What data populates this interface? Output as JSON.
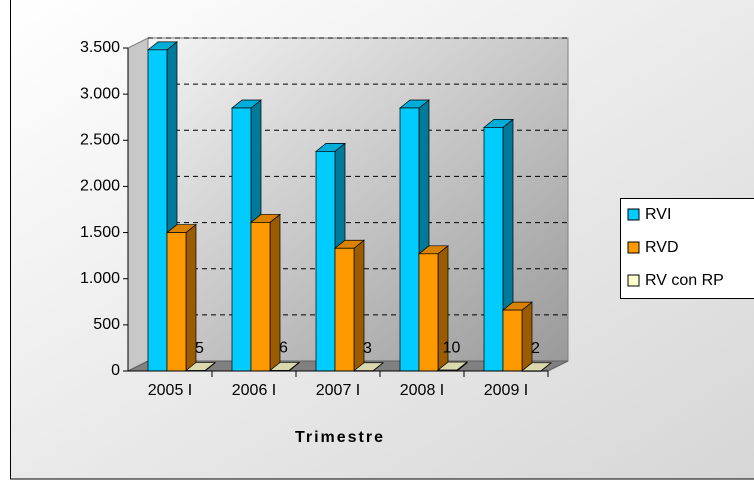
{
  "chart_data": {
    "type": "bar3d",
    "x_label": "Trimestre",
    "categories": [
      "2005 I",
      "2006 I",
      "2007 I",
      "2008 I",
      "2009 I"
    ],
    "series": [
      {
        "name": "RVI",
        "color": "#00ccff",
        "values": [
          3480,
          2850,
          2380,
          2850,
          2640
        ]
      },
      {
        "name": "RVD",
        "color": "#ff9900",
        "values": [
          1500,
          1610,
          1330,
          1270,
          660
        ]
      },
      {
        "name": "RV con RP",
        "color": "#ffffcc",
        "values": [
          5,
          6,
          3,
          10,
          2
        ],
        "show_labels": true
      }
    ],
    "ylim": [
      0,
      3500
    ],
    "yticks": [
      0,
      500,
      {
        "value": 1000,
        "label": "1.000"
      },
      {
        "value": 1500,
        "label": "1.500"
      },
      {
        "value": 2000,
        "label": "2.000"
      },
      {
        "value": 2500,
        "label": "2.500"
      },
      {
        "value": 3000,
        "label": "3.000"
      },
      {
        "value": 3500,
        "label": "3.500"
      }
    ],
    "grid": true,
    "legend": "right"
  }
}
